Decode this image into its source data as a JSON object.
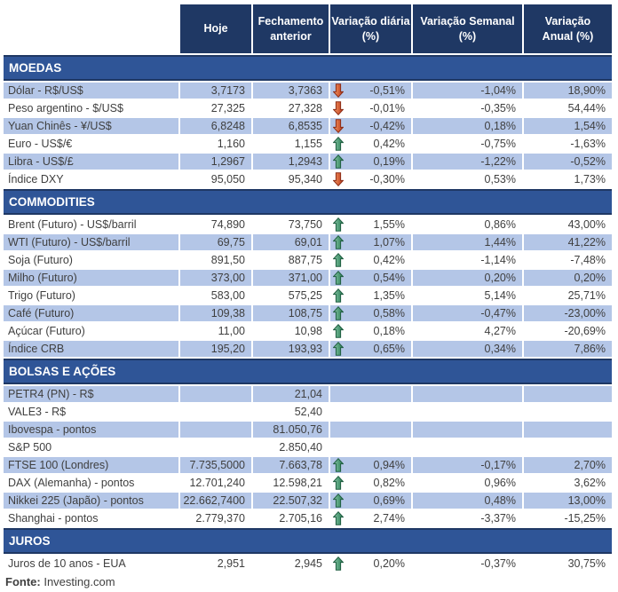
{
  "chart_data": {
    "type": "table",
    "columns": [
      "Hoje",
      "Fechamento\nanterior",
      "Variação diária\n(%)",
      "Variação Semanal\n(%)",
      "Variação\nAnual (%)"
    ],
    "sections": [
      {
        "title": "MOEDAS",
        "rows": [
          {
            "label": "Dólar - R$/US$",
            "hoje": "3,7173",
            "fechamento_anterior": "3,7363",
            "arrow": "down",
            "variacao_diaria": "-0,51%",
            "variacao_semanal": "-1,04%",
            "variacao_anual": "18,90%",
            "shaded": true
          },
          {
            "label": "Peso argentino - $/US$",
            "hoje": "27,325",
            "fechamento_anterior": "27,328",
            "arrow": "down",
            "variacao_diaria": "-0,01%",
            "variacao_semanal": "-0,35%",
            "variacao_anual": "54,44%",
            "shaded": false
          },
          {
            "label": "Yuan Chinês - ¥/US$",
            "hoje": "6,8248",
            "fechamento_anterior": "6,8535",
            "arrow": "down",
            "variacao_diaria": "-0,42%",
            "variacao_semanal": "0,18%",
            "variacao_anual": "1,54%",
            "shaded": true
          },
          {
            "label": "Euro - US$/€",
            "hoje": "1,160",
            "fechamento_anterior": "1,155",
            "arrow": "up",
            "variacao_diaria": "0,42%",
            "variacao_semanal": "-0,75%",
            "variacao_anual": "-1,63%",
            "shaded": false
          },
          {
            "label": "Libra - US$/£",
            "hoje": "1,2967",
            "fechamento_anterior": "1,2943",
            "arrow": "up",
            "variacao_diaria": "0,19%",
            "variacao_semanal": "-1,22%",
            "variacao_anual": "-0,52%",
            "shaded": true
          },
          {
            "label": "Índice DXY",
            "hoje": "95,050",
            "fechamento_anterior": "95,340",
            "arrow": "down",
            "variacao_diaria": "-0,30%",
            "variacao_semanal": "0,53%",
            "variacao_anual": "1,73%",
            "shaded": false
          }
        ]
      },
      {
        "title": "COMMODITIES",
        "rows": [
          {
            "label": "Brent (Futuro) - US$/barril",
            "hoje": "74,890",
            "fechamento_anterior": "73,750",
            "arrow": "up",
            "variacao_diaria": "1,55%",
            "variacao_semanal": "0,86%",
            "variacao_anual": "43,00%",
            "shaded": false
          },
          {
            "label": "WTI (Futuro) - US$/barril",
            "hoje": "69,75",
            "fechamento_anterior": "69,01",
            "arrow": "up",
            "variacao_diaria": "1,07%",
            "variacao_semanal": "1,44%",
            "variacao_anual": "41,22%",
            "shaded": true
          },
          {
            "label": "Soja (Futuro)",
            "hoje": "891,50",
            "fechamento_anterior": "887,75",
            "arrow": "up",
            "variacao_diaria": "0,42%",
            "variacao_semanal": "-1,14%",
            "variacao_anual": "-7,48%",
            "shaded": false
          },
          {
            "label": "Milho (Futuro)",
            "hoje": "373,00",
            "fechamento_anterior": "371,00",
            "arrow": "up",
            "variacao_diaria": "0,54%",
            "variacao_semanal": "0,20%",
            "variacao_anual": "0,20%",
            "shaded": true
          },
          {
            "label": "Trigo (Futuro)",
            "hoje": "583,00",
            "fechamento_anterior": "575,25",
            "arrow": "up",
            "variacao_diaria": "1,35%",
            "variacao_semanal": "5,14%",
            "variacao_anual": "25,71%",
            "shaded": false
          },
          {
            "label": "Café (Futuro)",
            "hoje": "109,38",
            "fechamento_anterior": "108,75",
            "arrow": "up",
            "variacao_diaria": "0,58%",
            "variacao_semanal": "-0,47%",
            "variacao_anual": "-23,00%",
            "shaded": true
          },
          {
            "label": "Açúcar (Futuro)",
            "hoje": "11,00",
            "fechamento_anterior": "10,98",
            "arrow": "up",
            "variacao_diaria": "0,18%",
            "variacao_semanal": "4,27%",
            "variacao_anual": "-20,69%",
            "shaded": false
          },
          {
            "label": "Índice CRB",
            "hoje": "195,20",
            "fechamento_anterior": "193,93",
            "arrow": "up",
            "variacao_diaria": "0,65%",
            "variacao_semanal": "0,34%",
            "variacao_anual": "7,86%",
            "shaded": true
          }
        ]
      },
      {
        "title": "BOLSAS E AÇÕES",
        "rows": [
          {
            "label": "PETR4 (PN) - R$",
            "hoje": "",
            "fechamento_anterior": "21,04",
            "arrow": "",
            "variacao_diaria": "",
            "variacao_semanal": "",
            "variacao_anual": "",
            "shaded": true
          },
          {
            "label": "VALE3 - R$",
            "hoje": "",
            "fechamento_anterior": "52,40",
            "arrow": "",
            "variacao_diaria": "",
            "variacao_semanal": "",
            "variacao_anual": "",
            "shaded": false
          },
          {
            "label": "Ibovespa - pontos",
            "hoje": "",
            "fechamento_anterior": "81.050,76",
            "arrow": "",
            "variacao_diaria": "",
            "variacao_semanal": "",
            "variacao_anual": "",
            "shaded": true
          },
          {
            "label": "S&P 500",
            "hoje": "",
            "fechamento_anterior": "2.850,40",
            "arrow": "",
            "variacao_diaria": "",
            "variacao_semanal": "",
            "variacao_anual": "",
            "shaded": false
          },
          {
            "label": "FTSE 100 (Londres)",
            "hoje": "7.735,5000",
            "fechamento_anterior": "7.663,78",
            "arrow": "up",
            "variacao_diaria": "0,94%",
            "variacao_semanal": "-0,17%",
            "variacao_anual": "2,70%",
            "shaded": true
          },
          {
            "label": "DAX (Alemanha) - pontos",
            "hoje": "12.701,240",
            "fechamento_anterior": "12.598,21",
            "arrow": "up",
            "variacao_diaria": "0,82%",
            "variacao_semanal": "0,96%",
            "variacao_anual": "3,62%",
            "shaded": false
          },
          {
            "label": "Nikkei 225 (Japão) - pontos",
            "hoje": "22.662,7400",
            "fechamento_anterior": "22.507,32",
            "arrow": "up",
            "variacao_diaria": "0,69%",
            "variacao_semanal": "0,48%",
            "variacao_anual": "13,00%",
            "shaded": true
          },
          {
            "label": "Shanghai - pontos",
            "hoje": "2.779,370",
            "fechamento_anterior": "2.705,16",
            "arrow": "up",
            "variacao_diaria": "2,74%",
            "variacao_semanal": "-3,37%",
            "variacao_anual": "-15,25%",
            "shaded": false
          }
        ]
      },
      {
        "title": "JUROS",
        "rows": [
          {
            "label": "Juros de 10 anos - EUA",
            "hoje": "2,951",
            "fechamento_anterior": "2,945",
            "arrow": "up",
            "variacao_diaria": "0,20%",
            "variacao_semanal": "-0,37%",
            "variacao_anual": "30,75%",
            "shaded": false
          }
        ]
      }
    ],
    "footer": {
      "source_label": "Fonte:",
      "source_value": "Investing.com"
    },
    "colors": {
      "header_bg": "#1F3864",
      "section_band_bg": "#2F5597",
      "shaded_row_bg": "#B4C6E7",
      "up_arrow_green": "#3E8E68",
      "down_arrow_red": "#C2452A",
      "row_text": "#3F3F3F"
    }
  }
}
